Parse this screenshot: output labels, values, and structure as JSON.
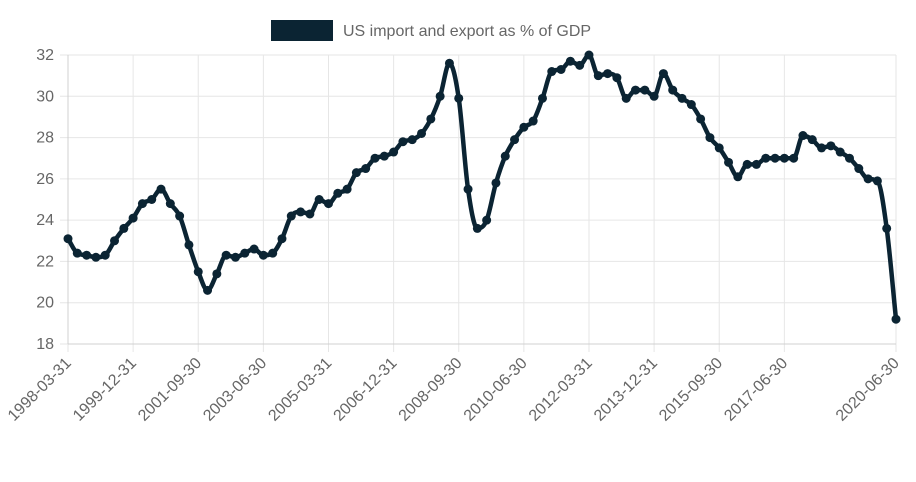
{
  "chart_data": {
    "type": "line",
    "title": "",
    "xlabel": "",
    "ylabel": "",
    "ylim": [
      18,
      32
    ],
    "yticks": [
      18,
      20,
      22,
      24,
      26,
      28,
      30,
      32
    ],
    "grid": true,
    "legend_position": "top",
    "x_tick_labels": [
      "1998-03-31",
      "1999-12-31",
      "2001-09-30",
      "2003-06-30",
      "2005-03-31",
      "2006-12-31",
      "2008-09-30",
      "2010-06-30",
      "2012-03-31",
      "2013-12-31",
      "2015-09-30",
      "2017-06-30",
      "2020-06-30"
    ],
    "x": [
      "1998-03-31",
      "1998-06-30",
      "1998-09-30",
      "1998-12-31",
      "1999-03-31",
      "1999-06-30",
      "1999-09-30",
      "1999-12-31",
      "2000-03-31",
      "2000-06-30",
      "2000-09-30",
      "2000-12-31",
      "2001-03-31",
      "2001-06-30",
      "2001-09-30",
      "2001-12-31",
      "2002-03-31",
      "2002-06-30",
      "2002-09-30",
      "2002-12-31",
      "2003-03-31",
      "2003-06-30",
      "2003-09-30",
      "2003-12-31",
      "2004-03-31",
      "2004-06-30",
      "2004-09-30",
      "2004-12-31",
      "2005-03-31",
      "2005-06-30",
      "2005-09-30",
      "2005-12-31",
      "2006-03-31",
      "2006-06-30",
      "2006-09-30",
      "2006-12-31",
      "2007-03-31",
      "2007-06-30",
      "2007-09-30",
      "2007-12-31",
      "2008-03-31",
      "2008-06-30",
      "2008-09-30",
      "2008-12-31",
      "2009-03-31",
      "2009-06-30",
      "2009-09-30",
      "2009-12-31",
      "2010-03-31",
      "2010-06-30",
      "2010-09-30",
      "2010-12-31",
      "2011-03-31",
      "2011-06-30",
      "2011-09-30",
      "2011-12-31",
      "2012-03-31",
      "2012-06-30",
      "2012-09-30",
      "2012-12-31",
      "2013-03-31",
      "2013-06-30",
      "2013-09-30",
      "2013-12-31",
      "2014-03-31",
      "2014-06-30",
      "2014-09-30",
      "2014-12-31",
      "2015-03-31",
      "2015-06-30",
      "2015-09-30",
      "2015-12-31",
      "2016-03-31",
      "2016-06-30",
      "2016-09-30",
      "2016-12-31",
      "2017-03-31",
      "2017-06-30",
      "2017-09-30",
      "2017-12-31",
      "2018-03-31",
      "2018-06-30",
      "2018-09-30",
      "2018-12-31",
      "2019-03-31",
      "2019-06-30",
      "2019-09-30",
      "2019-12-31",
      "2020-03-31",
      "2020-06-30"
    ],
    "series": [
      {
        "name": "US import and export as % of GDP",
        "color": "#0b2433",
        "values": [
          23.1,
          22.4,
          22.3,
          22.2,
          22.3,
          23.0,
          23.6,
          24.1,
          24.8,
          25.0,
          25.5,
          24.8,
          24.2,
          22.8,
          21.5,
          20.6,
          21.4,
          22.3,
          22.2,
          22.4,
          22.6,
          22.3,
          22.4,
          23.1,
          24.2,
          24.4,
          24.3,
          25.0,
          24.8,
          25.3,
          25.5,
          26.3,
          26.5,
          27.0,
          27.1,
          27.3,
          27.8,
          27.9,
          28.2,
          28.9,
          30.0,
          31.6,
          29.9,
          25.5,
          23.6,
          24.0,
          25.8,
          27.1,
          27.9,
          28.5,
          28.8,
          29.9,
          31.2,
          31.3,
          31.7,
          31.5,
          32.0,
          31.0,
          31.1,
          30.9,
          29.9,
          30.3,
          30.3,
          30.0,
          31.1,
          30.3,
          29.9,
          29.6,
          28.9,
          28.0,
          27.5,
          26.8,
          26.1,
          26.7,
          26.7,
          27.0,
          27.0,
          27.0,
          27.0,
          28.1,
          27.9,
          27.5,
          27.6,
          27.3,
          27.0,
          26.5,
          26.0,
          25.9,
          23.6,
          19.2
        ]
      }
    ]
  }
}
